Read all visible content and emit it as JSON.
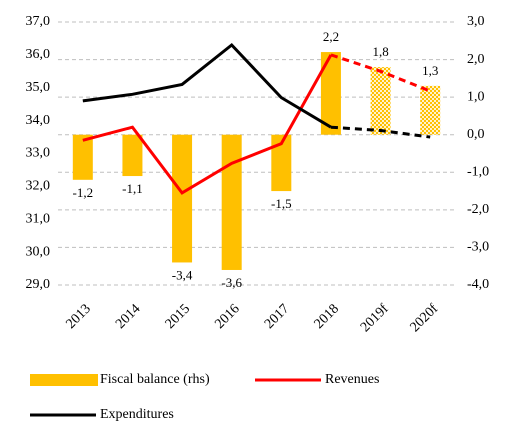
{
  "chart_data": {
    "type": "bar-line",
    "categories": [
      "2013",
      "2014",
      "2015",
      "2016",
      "2017",
      "2018",
      "2019f",
      "2020f"
    ],
    "series": [
      {
        "name": "Fiscal balance (rhs)",
        "type": "bar",
        "axis": "y2",
        "color": "#ffc000",
        "values": [
          -1.2,
          -1.1,
          -3.4,
          -3.6,
          -1.5,
          2.2,
          1.8,
          1.3
        ],
        "value_labels": [
          "-1,2",
          "-1,1",
          "-3,4",
          "-3,6",
          "-1,5",
          "2,2",
          "1,8",
          "1,3"
        ]
      },
      {
        "name": "Revenues",
        "type": "line",
        "axis": "y",
        "color": "#ff0000",
        "values": [
          33.4,
          33.8,
          31.8,
          32.7,
          33.3,
          36.0,
          35.5,
          34.9
        ]
      },
      {
        "name": "Expenditures",
        "type": "line",
        "axis": "y",
        "color": "#000000",
        "values": [
          34.6,
          34.8,
          35.1,
          36.3,
          34.7,
          33.8,
          33.7,
          33.5
        ]
      }
    ],
    "ylim": [
      29,
      37
    ],
    "yticks": [
      {
        "value": 29,
        "label": "29,0"
      },
      {
        "value": 30,
        "label": "30,0"
      },
      {
        "value": 31,
        "label": "31,0"
      },
      {
        "value": 32,
        "label": "32,0"
      },
      {
        "value": 33,
        "label": "33,0"
      },
      {
        "value": 34,
        "label": "34,0"
      },
      {
        "value": 35,
        "label": "35,0"
      },
      {
        "value": 36,
        "label": "36,0"
      },
      {
        "value": 37,
        "label": "37,0"
      }
    ],
    "y2lim": [
      -4,
      3
    ],
    "y2ticks": [
      {
        "value": -4,
        "label": "-4,0"
      },
      {
        "value": -3,
        "label": "-3,0"
      },
      {
        "value": -2,
        "label": "-2,0"
      },
      {
        "value": -1,
        "label": "-1,0"
      },
      {
        "value": 0,
        "label": "0,0"
      },
      {
        "value": 1,
        "label": "1,0"
      },
      {
        "value": 2,
        "label": "2,0"
      },
      {
        "value": 3,
        "label": "3,0"
      }
    ],
    "grid": true,
    "legend": "bottom"
  }
}
